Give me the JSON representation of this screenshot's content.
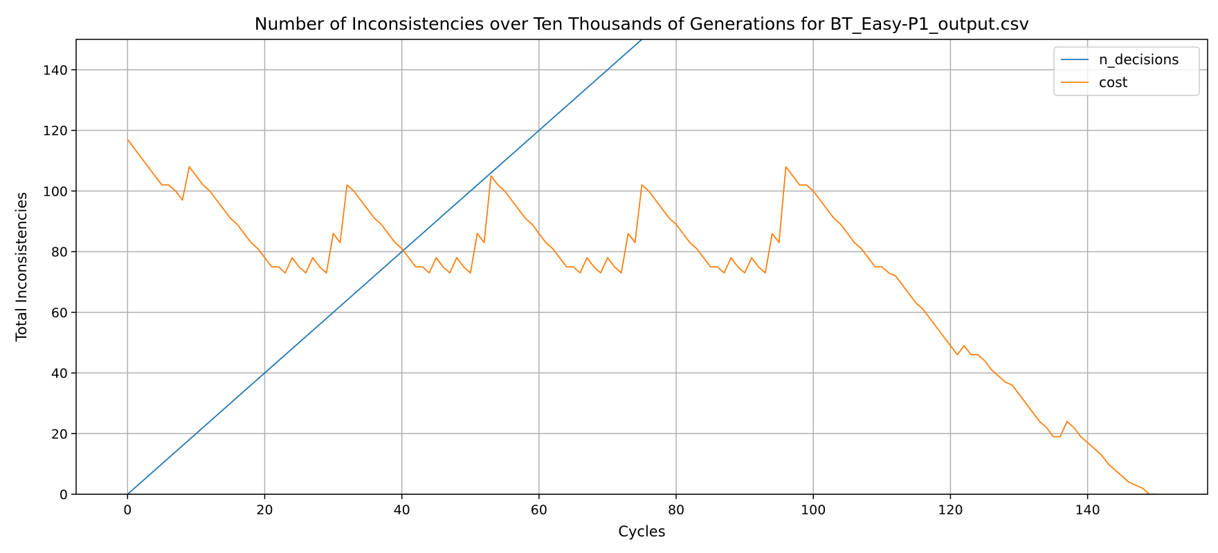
{
  "chart_data": {
    "type": "line",
    "title": "Number of Inconsistencies over Ten Thousands of Generations for BT_Easy-P1_output.csv",
    "xlabel": "Cycles",
    "ylabel": "Total Inconsistencies",
    "xlim": [
      -7.5,
      157.5
    ],
    "ylim": [
      0,
      150
    ],
    "xticks": [
      0,
      20,
      40,
      60,
      80,
      100,
      120,
      140
    ],
    "yticks": [
      0,
      20,
      40,
      60,
      80,
      100,
      120,
      140
    ],
    "grid": true,
    "legend_position": "top-right",
    "series": [
      {
        "name": "n_decisions",
        "color": "#1f77b4",
        "x": [
          0,
          150
        ],
        "y": [
          0,
          300
        ]
      },
      {
        "name": "cost",
        "color": "#ff7f0e",
        "x": [
          0,
          1,
          2,
          3,
          4,
          5,
          6,
          7,
          8,
          9,
          10,
          11,
          12,
          13,
          14,
          15,
          16,
          17,
          18,
          19,
          20,
          21,
          22,
          23,
          24,
          25,
          26,
          27,
          28,
          29,
          30,
          31,
          32,
          33,
          34,
          35,
          36,
          37,
          38,
          39,
          40,
          41,
          42,
          43,
          44,
          45,
          46,
          47,
          48,
          49,
          50,
          51,
          52,
          53,
          54,
          55,
          56,
          57,
          58,
          59,
          60,
          61,
          62,
          63,
          64,
          65,
          66,
          67,
          68,
          69,
          70,
          71,
          72,
          73,
          74,
          75,
          76,
          77,
          78,
          79,
          80,
          81,
          82,
          83,
          84,
          85,
          86,
          87,
          88,
          89,
          90,
          91,
          92,
          93,
          94,
          95,
          96,
          97,
          98,
          99,
          100,
          101,
          102,
          103,
          104,
          105,
          106,
          107,
          108,
          109,
          110,
          111,
          112,
          113,
          114,
          115,
          116,
          117,
          118,
          119,
          120,
          121,
          122,
          123,
          124,
          125,
          126,
          127,
          128,
          129,
          130,
          131,
          132,
          133,
          134,
          135,
          136,
          137,
          138,
          139,
          140,
          141,
          142,
          143,
          144,
          145,
          146,
          147,
          148,
          149,
          150
        ],
        "y": [
          117,
          114,
          111,
          108,
          105,
          102,
          102,
          100,
          97,
          108,
          105,
          102,
          100,
          97,
          94,
          91,
          89,
          86,
          83,
          81,
          78,
          75,
          75,
          73,
          78,
          75,
          73,
          78,
          75,
          73,
          86,
          83,
          102,
          100,
          97,
          94,
          91,
          89,
          86,
          83,
          81,
          78,
          75,
          75,
          73,
          78,
          75,
          73,
          78,
          75,
          73,
          86,
          83,
          105,
          102,
          100,
          97,
          94,
          91,
          89,
          86,
          83,
          81,
          78,
          75,
          75,
          73,
          78,
          75,
          73,
          78,
          75,
          73,
          86,
          83,
          102,
          100,
          97,
          94,
          91,
          89,
          86,
          83,
          81,
          78,
          75,
          75,
          73,
          78,
          75,
          73,
          78,
          75,
          73,
          86,
          83,
          108,
          105,
          102,
          102,
          100,
          97,
          94,
          91,
          89,
          86,
          83,
          81,
          78,
          75,
          75,
          73,
          72,
          69,
          66,
          63,
          61,
          58,
          55,
          52,
          49,
          46,
          49,
          46,
          46,
          44,
          41,
          39,
          37,
          36,
          33,
          30,
          27,
          24,
          22,
          19,
          19,
          24,
          22,
          19,
          17,
          15,
          13,
          10,
          8,
          6,
          4,
          3,
          2,
          0,
          0
        ]
      }
    ]
  }
}
